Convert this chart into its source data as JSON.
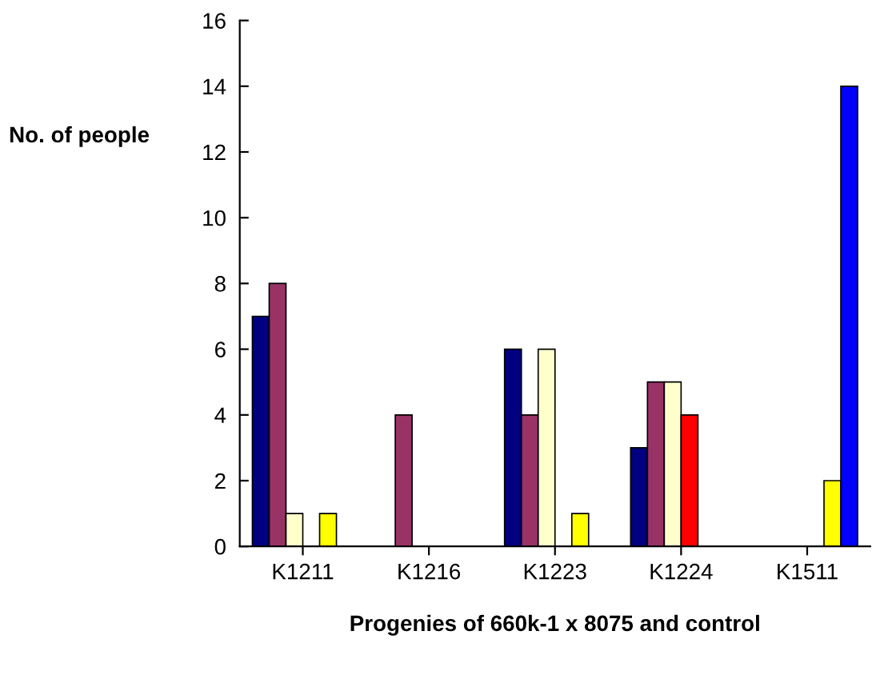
{
  "chart_data": {
    "type": "bar",
    "xlabel": "Progenies of 660k-1 x 8075 and control",
    "ylabel": "No. of people",
    "categories": [
      "K1211",
      "K1216",
      "K1223",
      "K1224",
      "K1511"
    ],
    "series": [
      {
        "color": "#000080",
        "values": [
          7,
          null,
          6,
          3,
          null
        ]
      },
      {
        "color": "#993366",
        "values": [
          8,
          4,
          4,
          5,
          null
        ]
      },
      {
        "color": "#ffffcc",
        "values": [
          1,
          null,
          6,
          5,
          null
        ]
      },
      {
        "color": "#ff0000",
        "values": [
          null,
          null,
          null,
          4,
          null
        ]
      },
      {
        "color": "#ffff00",
        "values": [
          1,
          null,
          1,
          null,
          2
        ]
      },
      {
        "color": "#0000ff",
        "values": [
          null,
          null,
          null,
          null,
          14
        ]
      }
    ],
    "ylim": [
      0,
      16
    ],
    "yticks": [
      0,
      2,
      4,
      6,
      8,
      10,
      12,
      14,
      16
    ],
    "grid": false,
    "legend": false
  }
}
